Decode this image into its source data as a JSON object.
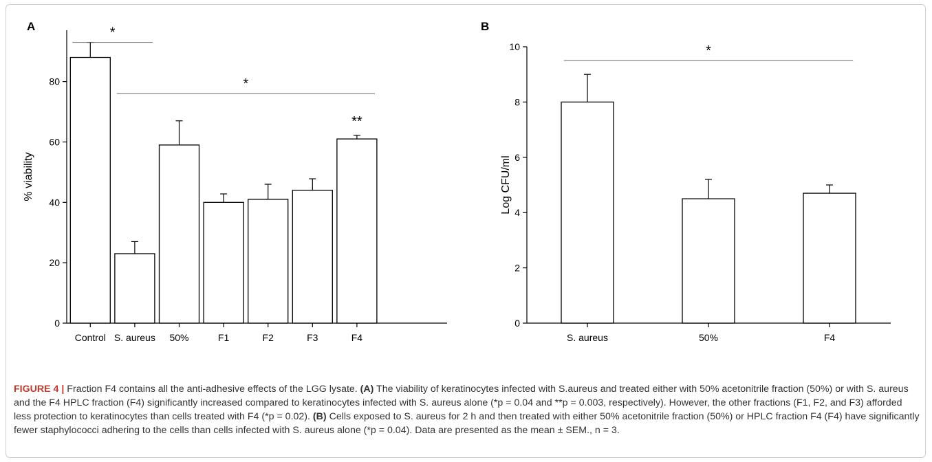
{
  "chart_data": [
    {
      "type": "bar",
      "panel": "A",
      "categories": [
        "Control",
        "S. aureus",
        "50%",
        "F1",
        "F2",
        "F3",
        "F4"
      ],
      "values": [
        88,
        23,
        59,
        40,
        41,
        44,
        61
      ],
      "errors": [
        5,
        4,
        8,
        2.8,
        5,
        3.8,
        1.2
      ],
      "ylabel": "% viability",
      "ylim": [
        0,
        97
      ],
      "yticks": [
        0,
        20,
        40,
        60,
        80
      ],
      "grid": false,
      "significance": [
        {
          "from": "Control",
          "to": "S. aureus",
          "y": 93,
          "mark": "*"
        },
        {
          "from": "S. aureus",
          "to": "F4",
          "y": 76,
          "mark": "*"
        }
      ],
      "bar_annotations": [
        {
          "category": "F4",
          "mark": "**"
        }
      ]
    },
    {
      "type": "bar",
      "panel": "B",
      "categories": [
        "S. aureus",
        "50%",
        "F4"
      ],
      "values": [
        8,
        4.5,
        4.7
      ],
      "errors": [
        1,
        0.7,
        0.3
      ],
      "ylabel": "Log CFU/ml",
      "ylim": [
        0,
        10
      ],
      "yticks": [
        0,
        2,
        4,
        6,
        8,
        10
      ],
      "grid": false,
      "significance": [
        {
          "from": "S. aureus",
          "to": "F4",
          "y": 9.5,
          "mark": "*"
        }
      ]
    }
  ],
  "caption": {
    "label": "FIGURE 4",
    "separator": " | ",
    "intro": "Fraction F4 contains all the anti-adhesive effects of the LGG lysate. ",
    "a_label": "(A)",
    "a_text": " The viability of keratinocytes infected with S.aureus and treated either with 50% acetonitrile fraction (50%) or with S. aureus and the F4 HPLC fraction (F4) significantly increased compared to keratinocytes infected with S. aureus alone (*p = 0.04 and **p = 0.003, respectively). However, the other fractions (F1, F2, and F3) afforded less protection to keratinocytes than cells treated with F4 (*p = 0.02). ",
    "b_label": "(B)",
    "b_text": " Cells exposed to S. aureus for 2 h and then treated with either 50% acetonitrile fraction (50%) or HPLC fraction F4 (F4) have significantly fewer staphylococci adhering to the cells than cells infected with S. aureus alone (*p = 0.04). Data are presented as the mean ± SEM., n = 3."
  }
}
